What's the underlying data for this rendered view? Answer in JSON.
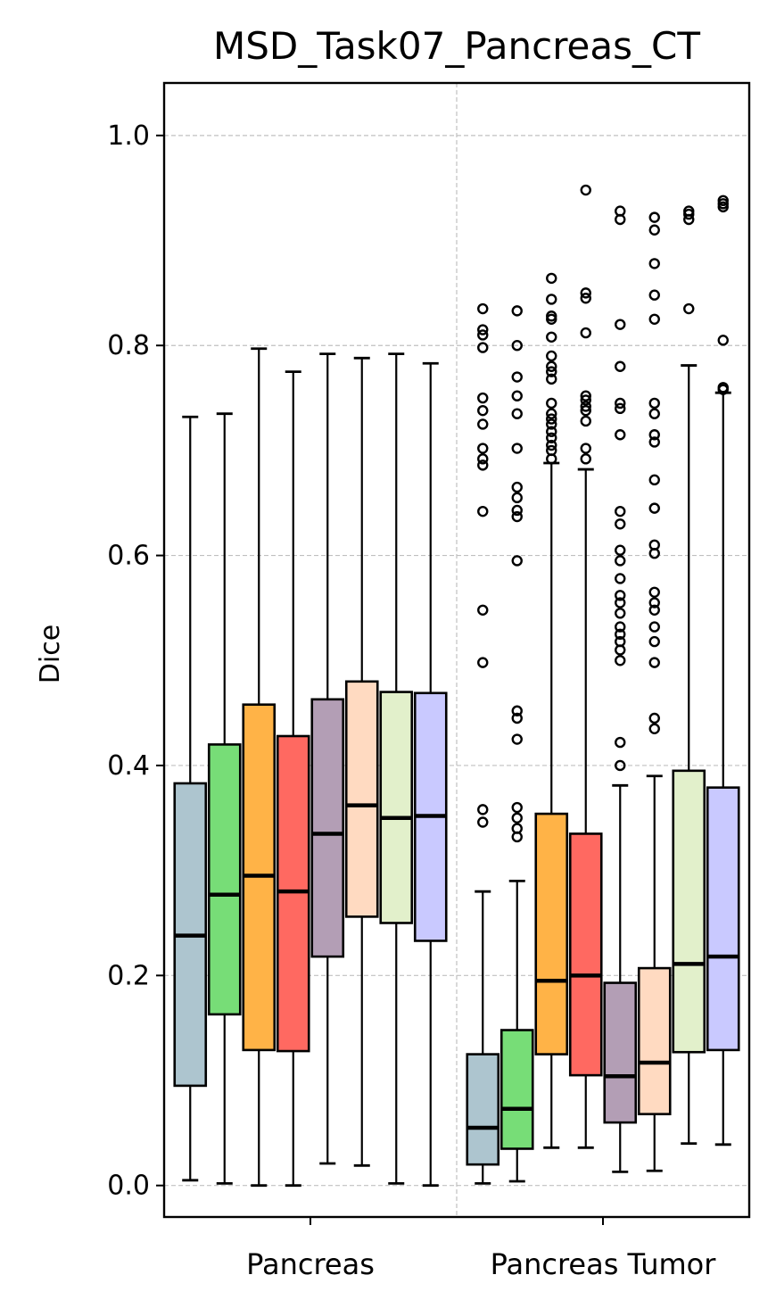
{
  "chart_data": {
    "type": "box",
    "title": "MSD_Task07_Pancreas_CT",
    "ylabel": "Dice",
    "xlabel": "",
    "ylim": [
      -0.03,
      1.05
    ],
    "yticks": [
      0.0,
      0.2,
      0.4,
      0.6,
      0.8,
      1.0
    ],
    "ytick_labels": [
      "0.0",
      "0.2",
      "0.4",
      "0.6",
      "0.8",
      "1.0"
    ],
    "grid": true,
    "categories": [
      "Pancreas",
      "Pancreas Tumor"
    ],
    "method_colors": [
      "#adc5cf",
      "#77dd77",
      "#ffb347",
      "#ff6961",
      "#b39eb5",
      "#ffdac1",
      "#e2f0cb",
      "#c9c9ff"
    ],
    "groups": [
      {
        "name": "Pancreas",
        "boxes": [
          {
            "q1": 0.095,
            "median": 0.238,
            "q3": 0.383,
            "whislo": 0.005,
            "whishi": 0.732,
            "fliers": []
          },
          {
            "q1": 0.163,
            "median": 0.277,
            "q3": 0.42,
            "whislo": 0.002,
            "whishi": 0.735,
            "fliers": []
          },
          {
            "q1": 0.129,
            "median": 0.295,
            "q3": 0.458,
            "whislo": 0.0,
            "whishi": 0.797,
            "fliers": []
          },
          {
            "q1": 0.128,
            "median": 0.28,
            "q3": 0.428,
            "whislo": 0.0,
            "whishi": 0.775,
            "fliers": []
          },
          {
            "q1": 0.218,
            "median": 0.335,
            "q3": 0.463,
            "whislo": 0.021,
            "whishi": 0.792,
            "fliers": []
          },
          {
            "q1": 0.256,
            "median": 0.362,
            "q3": 0.48,
            "whislo": 0.019,
            "whishi": 0.788,
            "fliers": []
          },
          {
            "q1": 0.25,
            "median": 0.35,
            "q3": 0.47,
            "whislo": 0.002,
            "whishi": 0.792,
            "fliers": []
          },
          {
            "q1": 0.233,
            "median": 0.352,
            "q3": 0.469,
            "whislo": 0.0,
            "whishi": 0.783,
            "fliers": []
          }
        ]
      },
      {
        "name": "Pancreas Tumor",
        "boxes": [
          {
            "q1": 0.02,
            "median": 0.055,
            "q3": 0.125,
            "whislo": 0.002,
            "whishi": 0.28,
            "fliers": [
              0.835,
              0.815,
              0.81,
              0.798,
              0.75,
              0.738,
              0.725,
              0.702,
              0.692,
              0.686,
              0.642,
              0.548,
              0.498,
              0.358,
              0.346
            ]
          },
          {
            "q1": 0.035,
            "median": 0.073,
            "q3": 0.148,
            "whislo": 0.004,
            "whishi": 0.29,
            "fliers": [
              0.833,
              0.8,
              0.77,
              0.752,
              0.735,
              0.702,
              0.665,
              0.655,
              0.643,
              0.637,
              0.595,
              0.452,
              0.445,
              0.425,
              0.36,
              0.35,
              0.34,
              0.332
            ]
          },
          {
            "q1": 0.125,
            "median": 0.195,
            "q3": 0.354,
            "whislo": 0.036,
            "whishi": 0.688,
            "fliers": [
              0.864,
              0.844,
              0.828,
              0.825,
              0.808,
              0.79,
              0.78,
              0.775,
              0.768,
              0.745,
              0.735,
              0.73,
              0.725,
              0.718,
              0.712,
              0.705,
              0.7,
              0.692
            ]
          },
          {
            "q1": 0.105,
            "median": 0.2,
            "q3": 0.335,
            "whislo": 0.036,
            "whishi": 0.682,
            "fliers": [
              0.948,
              0.85,
              0.845,
              0.812,
              0.752,
              0.748,
              0.742,
              0.738,
              0.728,
              0.702,
              0.692
            ]
          },
          {
            "q1": 0.06,
            "median": 0.104,
            "q3": 0.193,
            "whislo": 0.013,
            "whishi": 0.381,
            "fliers": [
              0.928,
              0.92,
              0.82,
              0.78,
              0.745,
              0.74,
              0.715,
              0.642,
              0.63,
              0.605,
              0.595,
              0.578,
              0.562,
              0.555,
              0.545,
              0.532,
              0.525,
              0.518,
              0.51,
              0.5,
              0.422,
              0.4
            ]
          },
          {
            "q1": 0.068,
            "median": 0.117,
            "q3": 0.207,
            "whislo": 0.014,
            "whishi": 0.39,
            "fliers": [
              0.922,
              0.91,
              0.878,
              0.848,
              0.825,
              0.745,
              0.735,
              0.715,
              0.708,
              0.672,
              0.645,
              0.61,
              0.602,
              0.565,
              0.555,
              0.548,
              0.532,
              0.518,
              0.498,
              0.445,
              0.435
            ]
          },
          {
            "q1": 0.127,
            "median": 0.211,
            "q3": 0.395,
            "whislo": 0.04,
            "whishi": 0.781,
            "fliers": [
              0.928,
              0.925,
              0.92,
              0.835
            ]
          },
          {
            "q1": 0.129,
            "median": 0.218,
            "q3": 0.379,
            "whislo": 0.039,
            "whishi": 0.755,
            "fliers": [
              0.938,
              0.935,
              0.932,
              0.805,
              0.76,
              0.758
            ]
          }
        ]
      }
    ]
  }
}
